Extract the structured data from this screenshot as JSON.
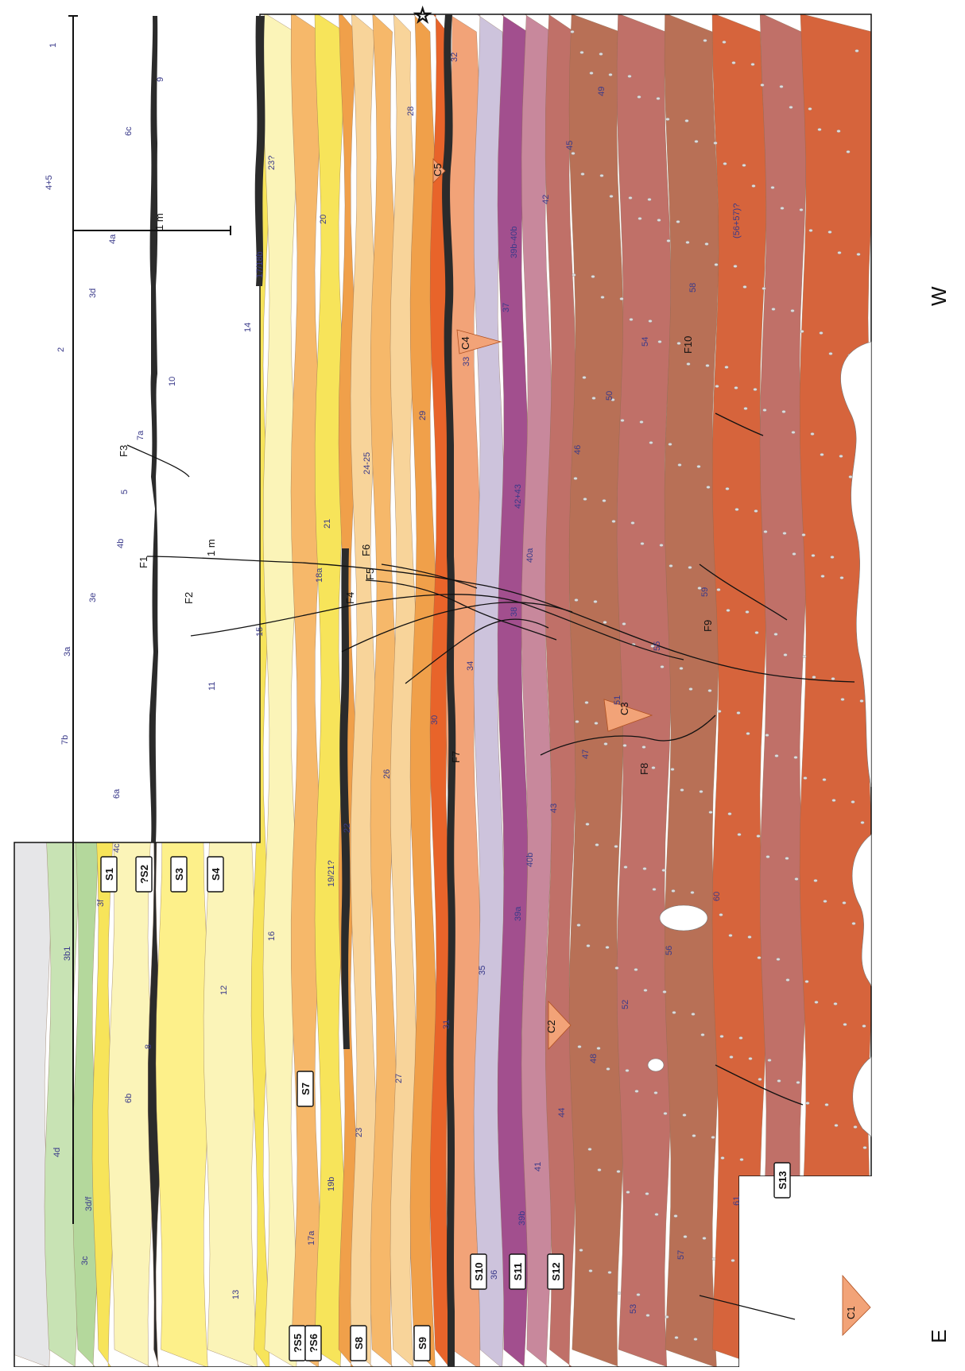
{
  "scale": {
    "vertical": "1 m",
    "horizontal": "1 m"
  },
  "orientation": {
    "east": "E",
    "west": "W"
  },
  "sections": [
    "S1",
    "?S2",
    "S3",
    "S4",
    "?S5",
    "?S6",
    "S7",
    "S8",
    "S9",
    "S10",
    "S11",
    "S12",
    "S13"
  ],
  "faults": [
    "F1",
    "F2",
    "F3",
    "F4",
    "F5",
    "F6",
    "F7",
    "F8",
    "F9",
    "F10"
  ],
  "cuts": [
    "C1",
    "C2",
    "C3",
    "C4",
    "C5"
  ],
  "units": [
    "1",
    "2",
    "3a",
    "3b1",
    "3c",
    "3d",
    "3e",
    "3f",
    "3d/f",
    "4a",
    "4b",
    "4c",
    "4d",
    "4+5",
    "5",
    "6a",
    "6b",
    "6c",
    "7a",
    "7b",
    "8",
    "9",
    "10",
    "11",
    "12",
    "13",
    "14",
    "15",
    "16",
    "17a",
    "17/18b",
    "18a",
    "19/21?",
    "19b",
    "20",
    "21",
    "22",
    "23",
    "23?",
    "24-25",
    "26",
    "27",
    "28",
    "29",
    "30",
    "31",
    "32",
    "33",
    "34",
    "35",
    "36",
    "37",
    "38",
    "39a",
    "39b",
    "39b-40b",
    "40a",
    "40b",
    "41",
    "42",
    "42+43",
    "43",
    "44",
    "45",
    "46",
    "47",
    "48",
    "49",
    "50",
    "51",
    "52",
    "53",
    "54",
    "55",
    "56",
    "57",
    "58",
    "59",
    "60",
    "61",
    "(56+57)?"
  ],
  "colors": {
    "grey": "#e6e6e8",
    "green_light": "#c8e3b4",
    "green_mid": "#b4d89c",
    "green_dark": "#7fbf5f",
    "yellow_pale": "#fbf4b8",
    "yellow": "#fdf08a",
    "yellow_deep": "#f7e45a",
    "tan": "#f8d49a",
    "orange_light": "#f6b86a",
    "orange": "#f0a04a",
    "salmon": "#f2a378",
    "red_orange": "#e8642a",
    "lavender": "#cdc3dc",
    "purple": "#a24f8e",
    "mauve": "#c8889c",
    "rose_brown": "#c07068",
    "brown": "#b87056",
    "red_brown": "#d6643c",
    "charcoal": "#2b2b2b"
  }
}
